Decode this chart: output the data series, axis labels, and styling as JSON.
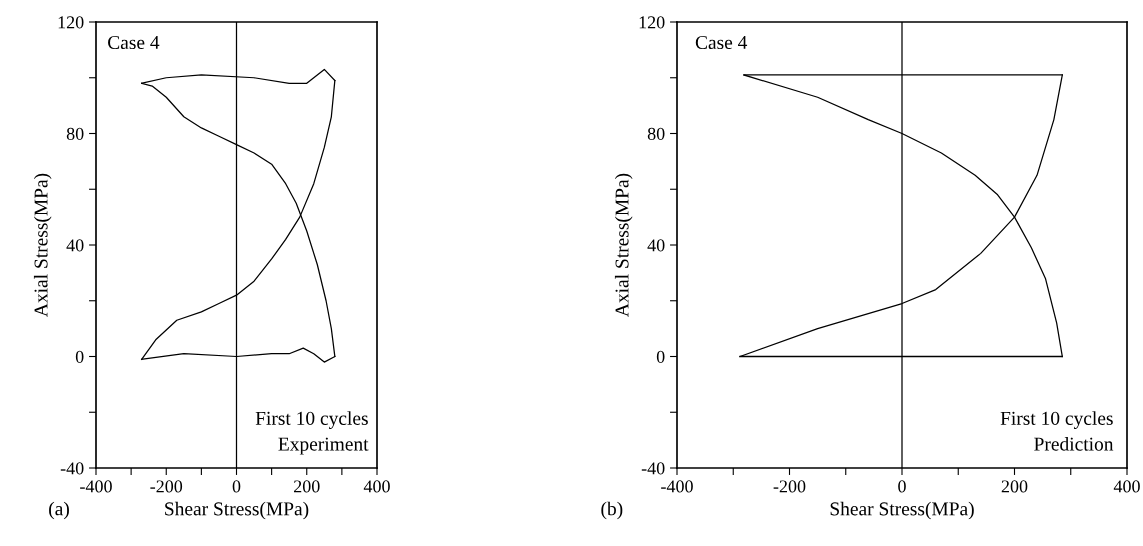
{
  "chart_data": [
    {
      "type": "line",
      "xlabel": "Shear Stress(MPa)",
      "ylabel": "Axial Stress(MPa)",
      "xlim": [
        -400,
        400
      ],
      "ylim": [
        -40,
        120
      ],
      "xticks": [
        -400,
        {
          "value": -300,
          "label": null
        },
        -200,
        {
          "value": -100,
          "label": null
        },
        0,
        {
          "value": 100,
          "label": null
        },
        200,
        {
          "value": 300,
          "label": null
        },
        400
      ],
      "yticks": [
        -40,
        {
          "value": -20,
          "label": null
        },
        0,
        {
          "value": 20,
          "label": null
        },
        40,
        {
          "value": 60,
          "label": null
        },
        80,
        {
          "value": 100,
          "label": null
        },
        120
      ],
      "ref_lines": [
        {
          "axis": "x",
          "value": 0,
          "color": "#000000"
        }
      ],
      "annotations": [
        "Case 4",
        "First 10 cycles\nExperiment",
        "(a)"
      ],
      "series": [
        {
          "color": "#000000",
          "x": [
            -270,
            -230,
            -170,
            -100,
            -50,
            0,
            50,
            100,
            140,
            180,
            220,
            250,
            270,
            280
          ],
          "values": [
            -1,
            6,
            13,
            16,
            19,
            22,
            27,
            35,
            42,
            50,
            62,
            75,
            86,
            99
          ]
        },
        {
          "color": "#000000",
          "x": [
            280,
            250,
            220,
            200,
            150,
            50,
            -100,
            -200,
            -270
          ],
          "values": [
            99,
            103,
            100,
            98,
            98,
            100,
            101,
            100,
            98
          ]
        },
        {
          "color": "#000000",
          "x": [
            -270,
            -240,
            -200,
            -150,
            -100,
            -50,
            0,
            50,
            100,
            140,
            170,
            200,
            230,
            255,
            270,
            280
          ],
          "values": [
            98,
            97,
            93,
            86,
            82,
            79,
            76,
            73,
            69,
            62,
            55,
            45,
            33,
            20,
            10,
            0
          ]
        },
        {
          "color": "#000000",
          "x": [
            280,
            250,
            220,
            190,
            150,
            100,
            0,
            -150,
            -270
          ],
          "values": [
            0,
            -2,
            1,
            3,
            1,
            1,
            0,
            1,
            -1
          ]
        }
      ]
    },
    {
      "type": "line",
      "xlabel": "Shear Stress(MPa)",
      "ylabel": "Axial Stress(MPa)",
      "xlim": [
        -400,
        400
      ],
      "ylim": [
        -40,
        120
      ],
      "xticks": [
        -400,
        {
          "value": -300,
          "label": null
        },
        -200,
        {
          "value": -100,
          "label": null
        },
        0,
        {
          "value": 100,
          "label": null
        },
        200,
        {
          "value": 300,
          "label": null
        },
        400
      ],
      "yticks": [
        -40,
        {
          "value": -20,
          "label": null
        },
        0,
        {
          "value": 20,
          "label": null
        },
        40,
        {
          "value": 60,
          "label": null
        },
        80,
        {
          "value": 100,
          "label": null
        },
        120
      ],
      "ref_lines": [
        {
          "axis": "x",
          "value": 0,
          "color": "#000000"
        }
      ],
      "annotations": [
        "Case 4",
        "First 10 cycles\nPrediction",
        "(b)"
      ],
      "series": [
        {
          "color": "#000000",
          "x": [
            -288,
            -150,
            0,
            60,
            140,
            200,
            240,
            270,
            285
          ],
          "values": [
            0,
            10,
            19,
            24,
            37,
            50,
            65,
            85,
            101
          ]
        },
        {
          "color": "#000000",
          "x": [
            285,
            100,
            0,
            -281
          ],
          "values": [
            101,
            101,
            101,
            101
          ]
        },
        {
          "color": "#000000",
          "x": [
            -281,
            -150,
            -60,
            0,
            70,
            130,
            170,
            200,
            230,
            255,
            275,
            285
          ],
          "values": [
            101,
            93,
            85,
            80,
            73,
            65,
            58,
            50,
            39,
            28,
            12,
            0
          ]
        },
        {
          "color": "#000000",
          "x": [
            285,
            0,
            -288
          ],
          "values": [
            0,
            0,
            0
          ]
        }
      ]
    }
  ]
}
